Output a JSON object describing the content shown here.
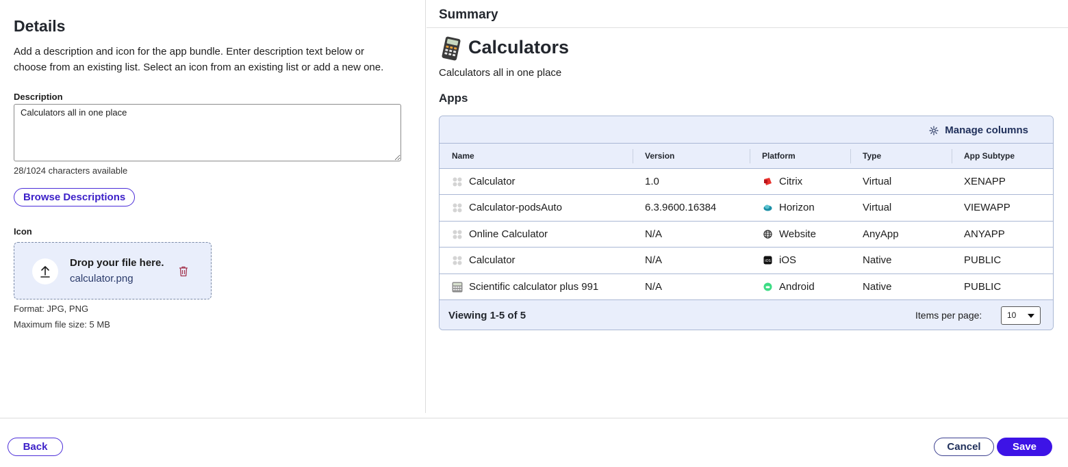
{
  "details": {
    "title": "Details",
    "instructions": "Add a description and icon for the app bundle. Enter description text below or choose from an existing list. Select an icon from an existing list or add a new one.",
    "description_label": "Description",
    "description_value": "Calculators all in one place",
    "char_count": "28/1024 characters available",
    "browse_button": "Browse Descriptions",
    "icon_label": "Icon",
    "drop_title": "Drop your file here.",
    "drop_file": "calculator.png",
    "format_text": "Format: JPG, PNG",
    "max_size_text": "Maximum file size: 5 MB"
  },
  "summary": {
    "title": "Summary",
    "bundle_icon": "calculator-icon",
    "bundle_name": "Calculators",
    "bundle_desc": "Calculators all in one place",
    "apps_title": "Apps",
    "manage_columns": "Manage columns",
    "columns": [
      "Name",
      "Version",
      "Platform",
      "Type",
      "App Subtype"
    ],
    "rows": [
      {
        "name": "Calculator",
        "icon": "placeholder-app-icon",
        "version": "1.0",
        "platform": "Citrix",
        "platform_icon": "citrix-icon",
        "type": "Virtual",
        "subtype": "XENAPP"
      },
      {
        "name": "Calculator-podsAuto",
        "icon": "placeholder-app-icon",
        "version": "6.3.9600.16384",
        "platform": "Horizon",
        "platform_icon": "horizon-icon",
        "type": "Virtual",
        "subtype": "VIEWAPP"
      },
      {
        "name": "Online Calculator",
        "icon": "placeholder-app-icon",
        "version": "N/A",
        "platform": "Website",
        "platform_icon": "globe-icon",
        "type": "AnyApp",
        "subtype": "ANYAPP"
      },
      {
        "name": "Calculator",
        "icon": "placeholder-app-icon",
        "version": "N/A",
        "platform": "iOS",
        "platform_icon": "ios-icon",
        "type": "Native",
        "subtype": "PUBLIC"
      },
      {
        "name": "Scientific calculator plus 991",
        "icon": "scientific-calculator-icon",
        "version": "N/A",
        "platform": "Android",
        "platform_icon": "android-icon",
        "type": "Native",
        "subtype": "PUBLIC"
      }
    ],
    "viewing": "Viewing 1-5 of 5",
    "items_per_page_label": "Items per page:",
    "items_per_page_value": "10"
  },
  "footer": {
    "back": "Back",
    "cancel": "Cancel",
    "save": "Save"
  },
  "colors": {
    "accent": "#3d13e6",
    "grid_header_bg": "#e9eefb",
    "grid_border": "#a9b7d4",
    "citrix": "#e8322d",
    "horizon": "#1a8fa6",
    "android": "#3ddc84"
  }
}
